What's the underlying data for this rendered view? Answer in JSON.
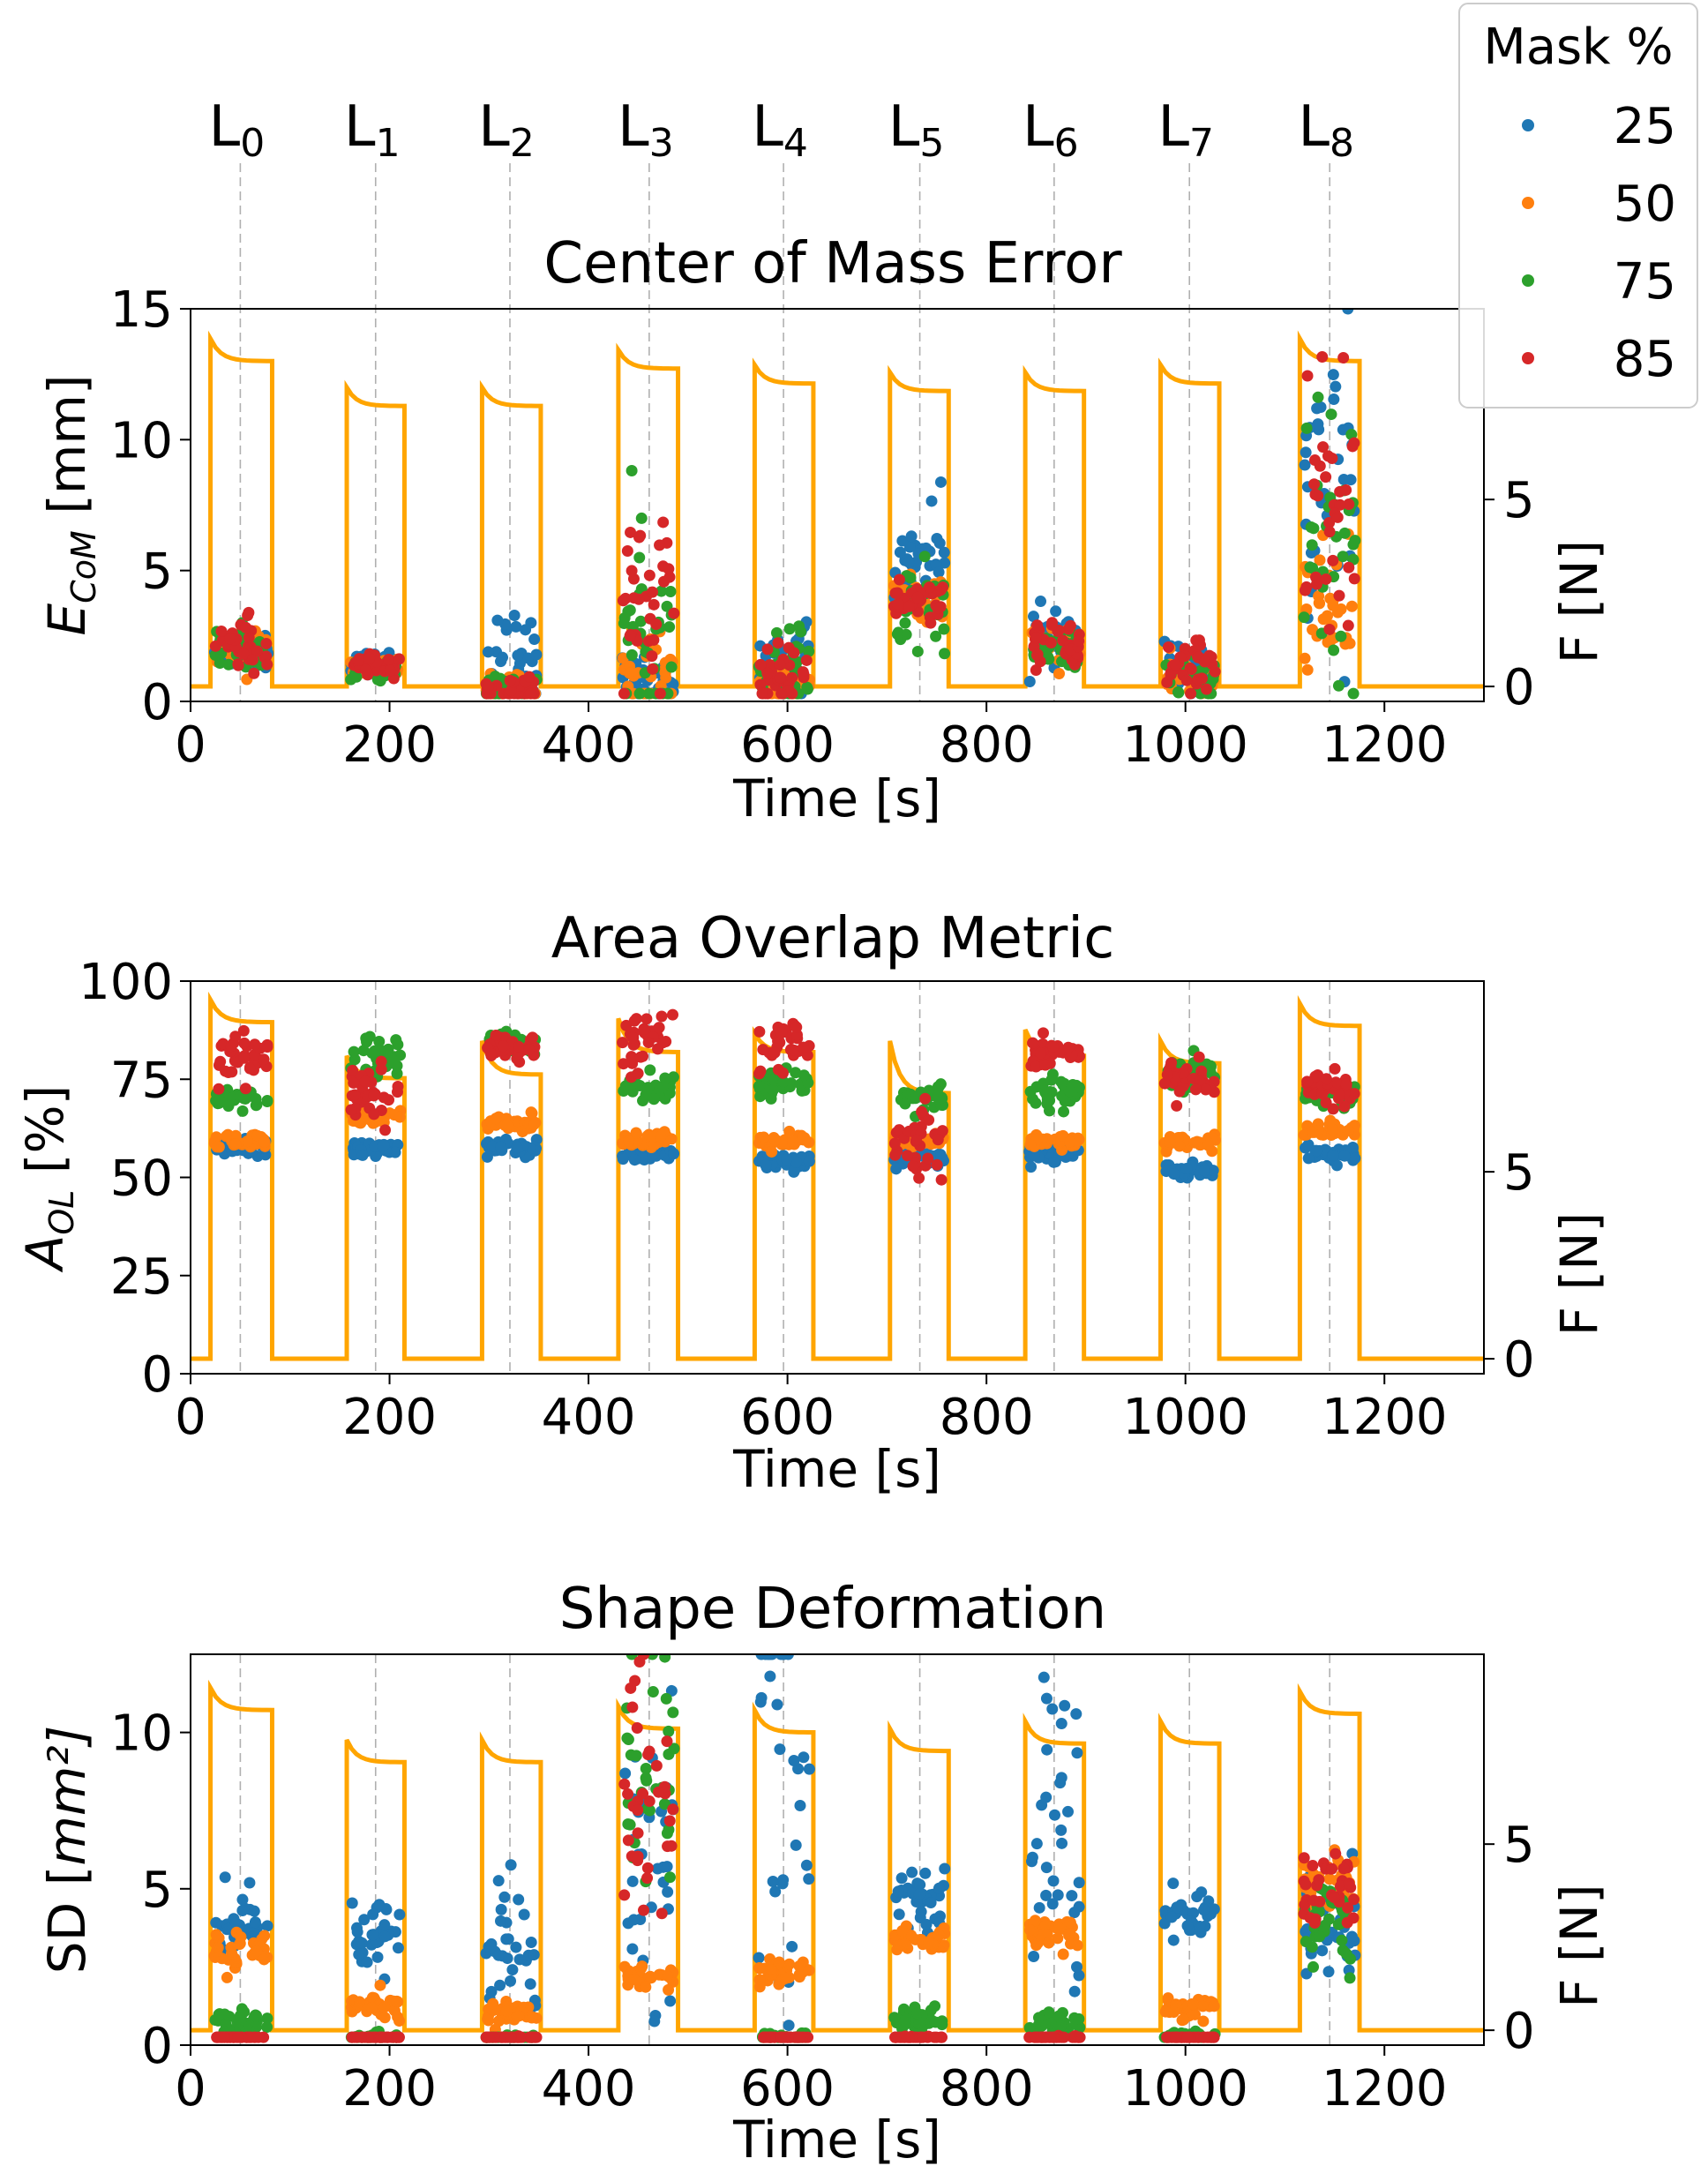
{
  "levels": [
    {
      "base": "L",
      "sub": "0",
      "t": 50
    },
    {
      "base": "L",
      "sub": "1",
      "t": 186
    },
    {
      "base": "L",
      "sub": "2",
      "t": 321
    },
    {
      "base": "L",
      "sub": "3",
      "t": 461
    },
    {
      "base": "L",
      "sub": "4",
      "t": 596
    },
    {
      "base": "L",
      "sub": "5",
      "t": 733
    },
    {
      "base": "L",
      "sub": "6",
      "t": 868
    },
    {
      "base": "L",
      "sub": "7",
      "t": 1004
    },
    {
      "base": "L",
      "sub": "8",
      "t": 1145
    }
  ],
  "legend": {
    "title": "Mask %",
    "items": [
      {
        "label": "25",
        "color": "#1f77b4"
      },
      {
        "label": "50",
        "color": "#ff7f0e"
      },
      {
        "label": "75",
        "color": "#2ca02c"
      },
      {
        "label": "85",
        "color": "#d62728"
      }
    ]
  },
  "force_color": "#ffa500",
  "chart_data": [
    {
      "type": "scatter",
      "title": "Center of Mass Error",
      "xlabel": "Time [s]",
      "ylabel": {
        "base": "E",
        "sub": "CoM",
        "unit": " [mm]"
      },
      "y2label": "F [N]",
      "xlim": [
        0,
        1300
      ],
      "ylim": [
        0,
        15
      ],
      "y2lim": [
        -0.4,
        10.1
      ],
      "xticks": [
        0,
        200,
        400,
        600,
        800,
        1000,
        1200
      ],
      "yticks": [
        0,
        5,
        10,
        15
      ],
      "y2ticks": [
        0,
        5
      ],
      "force_series": {
        "name": "F [N]",
        "segments": [
          {
            "start": 20,
            "end": 82,
            "peak": 9.3,
            "plateau": 8.7
          },
          {
            "start": 157,
            "end": 215,
            "peak": 8.0,
            "plateau": 7.5
          },
          {
            "start": 293,
            "end": 352,
            "peak": 8.0,
            "plateau": 7.5
          },
          {
            "start": 430,
            "end": 490,
            "peak": 9.0,
            "plateau": 8.5
          },
          {
            "start": 567,
            "end": 626,
            "peak": 8.6,
            "plateau": 8.1
          },
          {
            "start": 703,
            "end": 762,
            "peak": 8.4,
            "plateau": 7.9
          },
          {
            "start": 839,
            "end": 898,
            "peak": 8.4,
            "plateau": 7.9
          },
          {
            "start": 975,
            "end": 1034,
            "peak": 8.6,
            "plateau": 8.1
          },
          {
            "start": 1115,
            "end": 1175,
            "peak": 9.3,
            "plateau": 8.7
          }
        ]
      },
      "series": [
        {
          "name": "25",
          "cluster": [
            [
              2.0,
              0.4
            ],
            [
              1.5,
              0.2
            ],
            [
              1.6,
              0.9
            ],
            [
              0.6,
              0.5
            ],
            [
              1.5,
              0.8
            ],
            [
              5.5,
              1.0
            ],
            [
              2.5,
              0.5
            ],
            [
              1.2,
              0.4
            ],
            [
              8.0,
              3.0
            ]
          ]
        },
        {
          "name": "50",
          "cluster": [
            [
              2.0,
              0.4
            ],
            [
              1.3,
              0.2
            ],
            [
              0.4,
              0.3
            ],
            [
              0.9,
              0.8
            ],
            [
              0.6,
              0.4
            ],
            [
              3.8,
              0.5
            ],
            [
              2.2,
              0.4
            ],
            [
              0.8,
              0.4
            ],
            [
              3.5,
              1.2
            ]
          ]
        },
        {
          "name": "75",
          "cluster": [
            [
              2.0,
              0.4
            ],
            [
              1.2,
              0.2
            ],
            [
              0.5,
              0.3
            ],
            [
              2.5,
              2.0
            ],
            [
              1.0,
              0.8
            ],
            [
              3.5,
              0.8
            ],
            [
              2.0,
              0.4
            ],
            [
              1.0,
              0.5
            ],
            [
              6.0,
              3.0
            ]
          ]
        },
        {
          "name": "85",
          "cluster": [
            [
              2.2,
              0.5
            ],
            [
              1.4,
              0.2
            ],
            [
              0.4,
              0.3
            ],
            [
              3.0,
              2.2
            ],
            [
              0.9,
              0.6
            ],
            [
              3.8,
              0.4
            ],
            [
              2.2,
              0.5
            ],
            [
              1.2,
              0.5
            ],
            [
              8.0,
              3.2
            ]
          ]
        }
      ]
    },
    {
      "type": "scatter",
      "title": "Area Overlap Metric",
      "xlabel": "Time [s]",
      "ylabel": {
        "base": "A",
        "sub": "OL",
        "unit": " [%]"
      },
      "y2label": "F [N]",
      "xlim": [
        0,
        1300
      ],
      "ylim": [
        0,
        100
      ],
      "y2lim": [
        -0.4,
        10.1
      ],
      "xticks": [
        0,
        200,
        400,
        600,
        800,
        1000,
        1200
      ],
      "yticks": [
        0,
        25,
        50,
        75,
        100
      ],
      "y2ticks": [
        0,
        5
      ],
      "force_series": {
        "name": "F [N]",
        "segments": [
          {
            "start": 20,
            "end": 82,
            "peak": 9.6,
            "plateau": 9.0
          },
          {
            "start": 157,
            "end": 215,
            "peak": 8.1,
            "plateau": 7.5
          },
          {
            "start": 293,
            "end": 352,
            "peak": 8.5,
            "plateau": 7.6
          },
          {
            "start": 430,
            "end": 490,
            "peak": 9.1,
            "plateau": 8.2
          },
          {
            "start": 567,
            "end": 626,
            "peak": 8.7,
            "plateau": 8.2
          },
          {
            "start": 703,
            "end": 762,
            "peak": 8.5,
            "plateau": 7.1
          },
          {
            "start": 839,
            "end": 898,
            "peak": 8.8,
            "plateau": 8.1
          },
          {
            "start": 975,
            "end": 1034,
            "peak": 8.5,
            "plateau": 7.9
          },
          {
            "start": 1115,
            "end": 1175,
            "peak": 9.5,
            "plateau": 8.9
          }
        ]
      },
      "series": [
        {
          "name": "25",
          "cluster": [
            [
              58,
              1
            ],
            [
              57.5,
              1
            ],
            [
              57.5,
              1
            ],
            [
              55.5,
              1
            ],
            [
              54,
              1
            ],
            [
              55,
              1
            ],
            [
              56,
              1
            ],
            [
              52,
              1
            ],
            [
              56,
              1
            ]
          ]
        },
        {
          "name": "50",
          "cluster": [
            [
              59,
              1
            ],
            [
              65,
              1
            ],
            [
              64,
              1
            ],
            [
              60,
              1
            ],
            [
              59,
              1
            ],
            [
              59,
              1
            ],
            [
              59,
              1
            ],
            [
              59,
              1
            ],
            [
              62,
              1
            ]
          ]
        },
        {
          "name": "75",
          "cluster": [
            [
              70,
              1.5
            ],
            [
              80,
              3
            ],
            [
              84,
              1.5
            ],
            [
              73,
              2
            ],
            [
              73,
              2
            ],
            [
              70,
              1.5
            ],
            [
              71,
              2
            ],
            [
              76,
              2
            ],
            [
              71,
              2
            ]
          ]
        },
        {
          "name": "85",
          "cluster": [
            [
              80,
              4
            ],
            [
              72,
              3
            ],
            [
              83,
              1.5
            ],
            [
              86,
              4
            ],
            [
              84,
              4
            ],
            [
              60,
              4
            ],
            [
              82,
              2
            ],
            [
              75,
              2
            ],
            [
              73,
              3
            ]
          ]
        }
      ]
    },
    {
      "type": "scatter",
      "title": "Shape Deformation",
      "xlabel": "Time [s]",
      "ylabel": {
        "base": "SD [",
        "sub": "",
        "unit": "mm²]"
      },
      "y2label": "F [N]",
      "xlim": [
        0,
        1300
      ],
      "ylim": [
        0,
        12.5
      ],
      "y2lim": [
        -0.4,
        10.1
      ],
      "xticks": [
        0,
        200,
        400,
        600,
        800,
        1000,
        1200
      ],
      "yticks": [
        0,
        5,
        10
      ],
      "y2ticks": [
        0,
        5
      ],
      "force_series": {
        "name": "F [N]",
        "segments": [
          {
            "start": 20,
            "end": 82,
            "peak": 9.2,
            "plateau": 8.6
          },
          {
            "start": 157,
            "end": 215,
            "peak": 7.8,
            "plateau": 7.2
          },
          {
            "start": 293,
            "end": 352,
            "peak": 7.8,
            "plateau": 7.2
          },
          {
            "start": 430,
            "end": 490,
            "peak": 8.7,
            "plateau": 8.1
          },
          {
            "start": 567,
            "end": 626,
            "peak": 8.6,
            "plateau": 8.0
          },
          {
            "start": 703,
            "end": 762,
            "peak": 8.1,
            "plateau": 7.5
          },
          {
            "start": 839,
            "end": 898,
            "peak": 8.3,
            "plateau": 7.7
          },
          {
            "start": 975,
            "end": 1034,
            "peak": 8.3,
            "plateau": 7.7
          },
          {
            "start": 1115,
            "end": 1175,
            "peak": 9.1,
            "plateau": 8.5
          }
        ]
      },
      "series": [
        {
          "name": "25",
          "cluster": [
            [
              4.0,
              0.5
            ],
            [
              3.5,
              0.6
            ],
            [
              3.0,
              1.5
            ],
            [
              6.0,
              3.5
            ],
            [
              8.0,
              4.0
            ],
            [
              4.8,
              0.4
            ],
            [
              7.0,
              3.0
            ],
            [
              4.2,
              0.4
            ],
            [
              3.5,
              1.0
            ]
          ]
        },
        {
          "name": "50",
          "cluster": [
            [
              3.0,
              0.3
            ],
            [
              1.2,
              0.2
            ],
            [
              1.0,
              0.2
            ],
            [
              2.2,
              0.2
            ],
            [
              2.3,
              0.2
            ],
            [
              3.4,
              0.2
            ],
            [
              3.6,
              0.3
            ],
            [
              1.2,
              0.2
            ],
            [
              5.0,
              0.5
            ]
          ]
        },
        {
          "name": "75",
          "cluster": [
            [
              0.7,
              0.2
            ],
            [
              0.2,
              0.1
            ],
            [
              0.1,
              0.1
            ],
            [
              9.0,
              2.5
            ],
            [
              0.2,
              0.1
            ],
            [
              0.8,
              0.2
            ],
            [
              0.7,
              0.2
            ],
            [
              0.3,
              0.1
            ],
            [
              4.0,
              0.6
            ]
          ]
        },
        {
          "name": "85",
          "cluster": [
            [
              0.1,
              0.05
            ],
            [
              0.1,
              0.05
            ],
            [
              0.1,
              0.05
            ],
            [
              8.0,
              2.5
            ],
            [
              0.1,
              0.05
            ],
            [
              0.2,
              0.05
            ],
            [
              0.2,
              0.05
            ],
            [
              0.1,
              0.05
            ],
            [
              5.0,
              0.6
            ]
          ]
        }
      ]
    }
  ]
}
